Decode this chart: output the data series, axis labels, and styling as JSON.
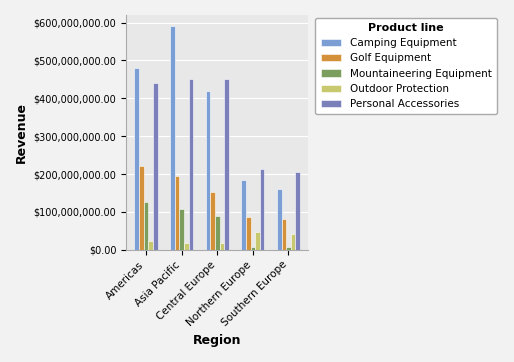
{
  "regions": [
    "Americas",
    "Asia Pacific",
    "Central Europe",
    "Northern Europe",
    "Southern Europe"
  ],
  "product_lines": [
    "Camping Equipment",
    "Golf Equipment",
    "Mountaineering Equipment",
    "Outdoor Protection",
    "Personal Accessories"
  ],
  "values": {
    "Camping Equipment": [
      480000000,
      590000000,
      420000000,
      183000000,
      160000000
    ],
    "Golf Equipment": [
      220000000,
      195000000,
      153000000,
      87000000,
      80000000
    ],
    "Mountaineering Equipment": [
      125000000,
      108000000,
      88000000,
      8000000,
      8000000
    ],
    "Outdoor Protection": [
      22000000,
      17000000,
      17000000,
      47000000,
      42000000
    ],
    "Personal Accessories": [
      440000000,
      450000000,
      450000000,
      213000000,
      205000000
    ]
  },
  "colors": {
    "Camping Equipment": "#7b9fd4",
    "Golf Equipment": "#d4913a",
    "Mountaineering Equipment": "#7b9e5e",
    "Outdoor Protection": "#c8c86e",
    "Personal Accessories": "#7b7fba"
  },
  "xlabel": "Region",
  "ylabel": "Revenue",
  "ylim": [
    0,
    620000000
  ],
  "ytick_step": 100000000,
  "plot_bg_color": "#e8e8e8",
  "fig_bg_color": "#f2f2f2",
  "legend_title": "Product line",
  "bar_width": 0.13,
  "figsize": [
    5.14,
    3.62
  ],
  "dpi": 100
}
